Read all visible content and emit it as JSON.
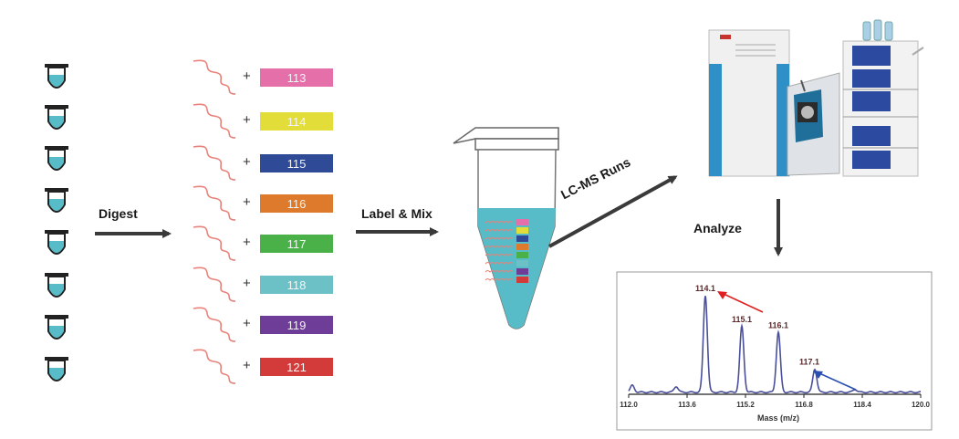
{
  "steps": {
    "digest": "Digest",
    "label_mix": "Label & Mix",
    "lcms": "LC-MS Runs",
    "analyze": "Analyze"
  },
  "plus_sign": "+",
  "tags": [
    {
      "label": "113",
      "color": "#e46fa9"
    },
    {
      "label": "114",
      "color": "#e3dd3a"
    },
    {
      "label": "115",
      "color": "#2f4b97"
    },
    {
      "label": "116",
      "color": "#de7a2b"
    },
    {
      "label": "117",
      "color": "#4ab048"
    },
    {
      "label": "118",
      "color": "#6cc1c6"
    },
    {
      "label": "119",
      "color": "#6e3d97"
    },
    {
      "label": "121",
      "color": "#d33b3b"
    }
  ],
  "colors": {
    "tube_fill": "#57bcc7",
    "peptide": "#e8827a",
    "arrow": "#3a3a3a",
    "spectrum": "#4a4f9a",
    "red_arrow": "#e02020",
    "blue_arrow": "#2a4fb0"
  },
  "chart_data": {
    "type": "line",
    "xlabel": "Mass (m/z)",
    "xlim": [
      112.0,
      120.0
    ],
    "xticks": [
      "112.0",
      "113.6",
      "115.2",
      "116.8",
      "118.4",
      "120.0"
    ],
    "peaks": [
      {
        "x": 112.1,
        "y": 0.07,
        "label": ""
      },
      {
        "x": 113.3,
        "y": 0.06,
        "label": ""
      },
      {
        "x": 114.1,
        "y": 1.0,
        "label": "114.1"
      },
      {
        "x": 115.1,
        "y": 0.68,
        "label": "115.1"
      },
      {
        "x": 116.1,
        "y": 0.62,
        "label": "116.1"
      },
      {
        "x": 117.1,
        "y": 0.24,
        "label": "117.1"
      },
      {
        "x": 118.2,
        "y": 0.03,
        "label": ""
      }
    ]
  }
}
